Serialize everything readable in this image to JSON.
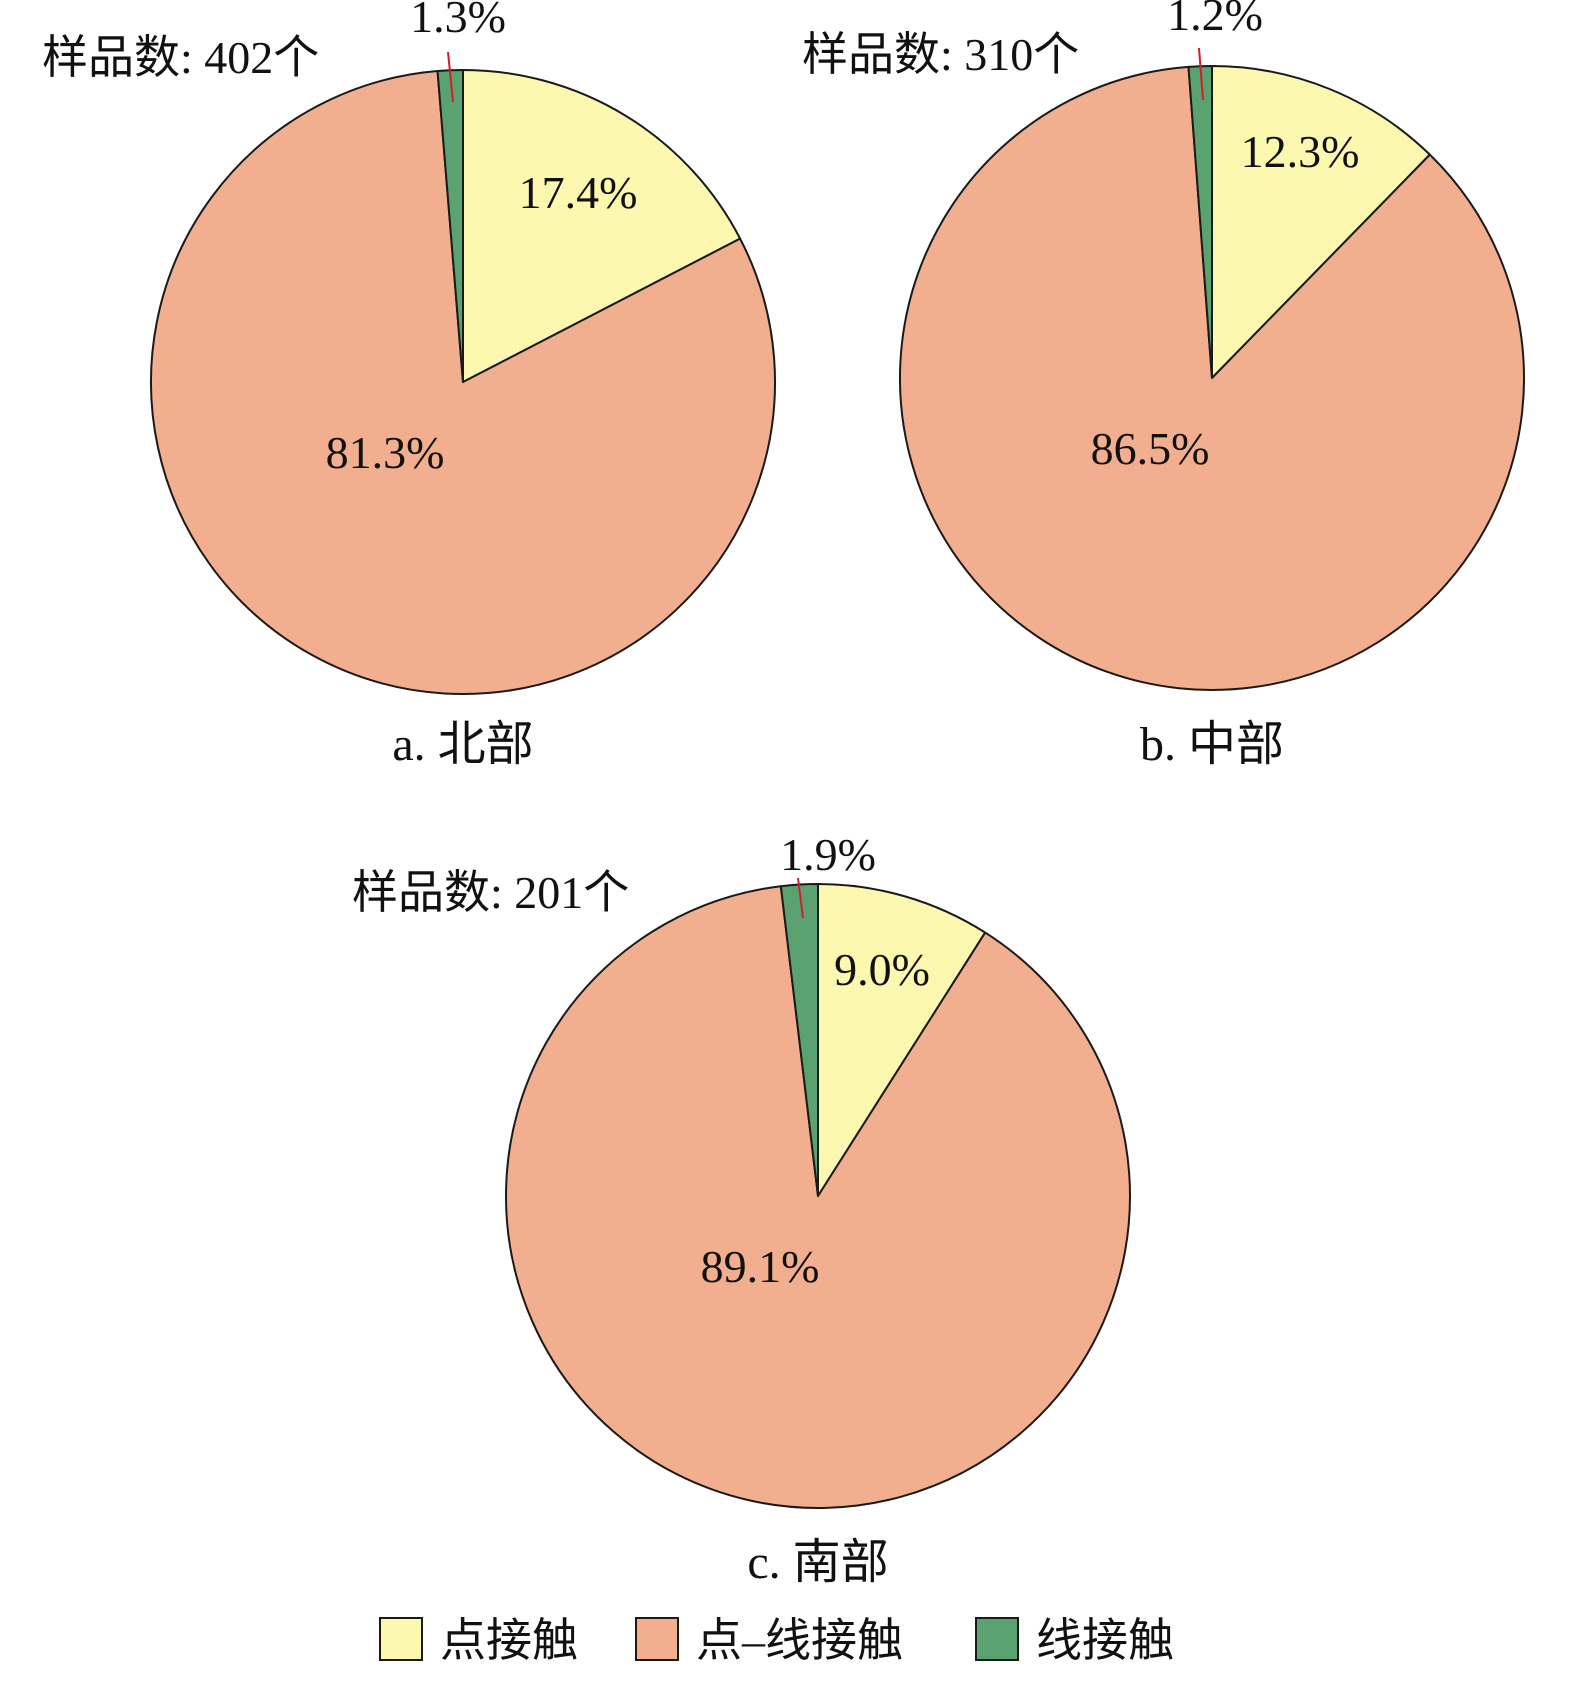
{
  "chart_data": [
    {
      "type": "pie",
      "caption": "a. 北部",
      "sample_label": "样品数: 402个",
      "categories": [
        "点接触",
        "点–线接触",
        "线接触"
      ],
      "values": [
        17.4,
        81.3,
        1.3
      ],
      "value_labels": [
        "17.4%",
        "81.3%",
        "1.3%"
      ]
    },
    {
      "type": "pie",
      "caption": "b. 中部",
      "sample_label": "样品数: 310个",
      "categories": [
        "点接触",
        "点–线接触",
        "线接触"
      ],
      "values": [
        12.3,
        86.5,
        1.2
      ],
      "value_labels": [
        "12.3%",
        "86.5%",
        "1.2%"
      ]
    },
    {
      "type": "pie",
      "caption": "c. 南部",
      "sample_label": "样品数: 201个",
      "categories": [
        "点接触",
        "点–线接触",
        "线接触"
      ],
      "values": [
        9.0,
        89.1,
        1.9
      ],
      "value_labels": [
        "9.0%",
        "89.1%",
        "1.9%"
      ]
    }
  ],
  "legend": {
    "placement": "bottom-center",
    "items": [
      {
        "label": "点接触",
        "color": "#FDF8B0"
      },
      {
        "label": "点–线接触",
        "color": "#F2AF90"
      },
      {
        "label": "线接触",
        "color": "#5BA271"
      }
    ]
  },
  "colors": {
    "outline": "#1a1a1a",
    "leader_line": "#D01F2A"
  }
}
